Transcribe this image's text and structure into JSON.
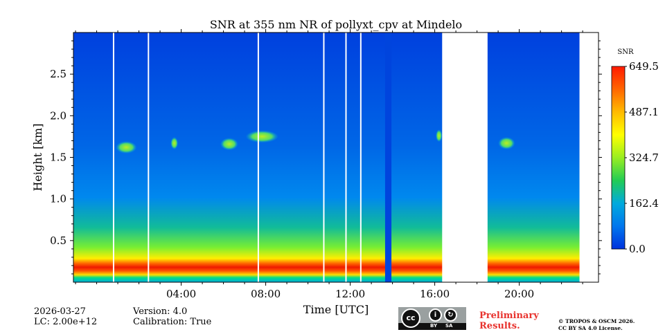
{
  "chart_data": {
    "type": "heatmap",
    "title": "SNR at 355 nm NR of pollyxt_cpv at Mindelo",
    "xlabel": "Time [UTC]",
    "ylabel": "Height [km]",
    "xlim_hours": [
      -1.1,
      23.75
    ],
    "ylim_km": [
      0.0,
      3.0
    ],
    "x_ticks": [
      {
        "hour": 4,
        "label": "04:00"
      },
      {
        "hour": 8,
        "label": "08:00"
      },
      {
        "hour": 12,
        "label": "12:00"
      },
      {
        "hour": 16,
        "label": "16:00"
      },
      {
        "hour": 20,
        "label": "20:00"
      }
    ],
    "y_ticks": [
      {
        "km": 0.5,
        "label": "0.5"
      },
      {
        "km": 1.0,
        "label": "1.0"
      },
      {
        "km": 1.5,
        "label": "1.5"
      },
      {
        "km": 2.0,
        "label": "2.0"
      },
      {
        "km": 2.5,
        "label": "2.5"
      }
    ],
    "data_segments_hours": [
      [
        -1.1,
        16.35
      ],
      [
        18.5,
        22.85
      ]
    ],
    "gap_lines_hours": [
      0.8,
      2.45,
      7.65,
      10.75,
      11.8,
      12.5
    ],
    "low_snr_stripe_hours": [
      13.65,
      13.95
    ],
    "cloud_patches": [
      {
        "t0": 0.9,
        "t1": 1.9,
        "z": 1.62
      },
      {
        "t0": 3.5,
        "t1": 3.85,
        "z": 1.67
      },
      {
        "t0": 5.85,
        "t1": 6.7,
        "z": 1.66
      },
      {
        "t0": 7.05,
        "t1": 8.6,
        "z": 1.75
      },
      {
        "t0": 16.05,
        "t1": 16.35,
        "z": 1.76
      },
      {
        "t0": 19.0,
        "t1": 19.8,
        "z": 1.67
      }
    ],
    "colorbar": {
      "label": "SNR",
      "min": 0.0,
      "max": 649.5,
      "ticks": [
        "0.0",
        "162.4",
        "324.7",
        "487.1",
        "649.5"
      ],
      "colors": [
        "#0033dd",
        "#0077ee",
        "#00aadd",
        "#22cc55",
        "#99ee22",
        "#ffff00",
        "#ffbb00",
        "#ff6600",
        "#ff1a00"
      ]
    }
  },
  "footer": {
    "date": "2026-03-27",
    "lc": "LC: 2.00e+12",
    "version": "Version: 4.0",
    "calibration": "Calibration: True",
    "preliminary_line1": "Preliminary",
    "preliminary_line2": "Results.",
    "copyright_line1": "© TROPOS & OSCM 2026.",
    "copyright_line2": "CC BY SA 4.0 License.",
    "license_cc": "cc",
    "license_by": "BY",
    "license_sa": "SA"
  }
}
